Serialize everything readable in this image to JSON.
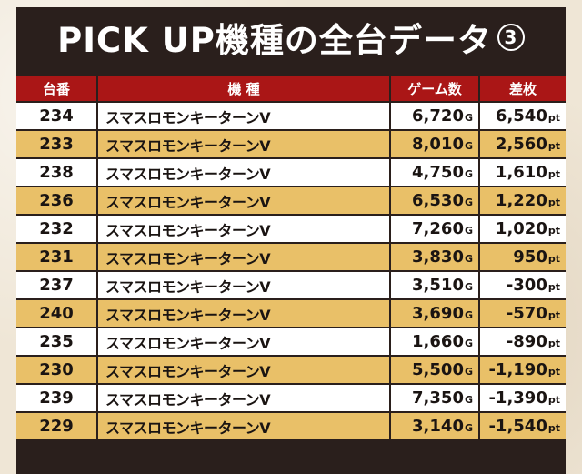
{
  "title": "PICK UP機種の全台データ",
  "title_number": "3",
  "columns": [
    "台番",
    "機 種",
    "ゲーム数",
    "差枚"
  ],
  "game_unit": "G",
  "diff_unit": "pt",
  "rows": [
    {
      "no": "234",
      "name": "スマスロモンキーターンV",
      "games": "6,720",
      "diff": "6,540"
    },
    {
      "no": "233",
      "name": "スマスロモンキーターンV",
      "games": "8,010",
      "diff": "2,560"
    },
    {
      "no": "238",
      "name": "スマスロモンキーターンV",
      "games": "4,750",
      "diff": "1,610"
    },
    {
      "no": "236",
      "name": "スマスロモンキーターンV",
      "games": "6,530",
      "diff": "1,220"
    },
    {
      "no": "232",
      "name": "スマスロモンキーターンV",
      "games": "7,260",
      "diff": "1,020"
    },
    {
      "no": "231",
      "name": "スマスロモンキーターンV",
      "games": "3,830",
      "diff": "950"
    },
    {
      "no": "237",
      "name": "スマスロモンキーターンV",
      "games": "3,510",
      "diff": "-300"
    },
    {
      "no": "240",
      "name": "スマスロモンキーターンV",
      "games": "3,690",
      "diff": "-570"
    },
    {
      "no": "235",
      "name": "スマスロモンキーターンV",
      "games": "1,660",
      "diff": "-890"
    },
    {
      "no": "230",
      "name": "スマスロモンキーターンV",
      "games": "5,500",
      "diff": "-1,190"
    },
    {
      "no": "239",
      "name": "スマスロモンキーターンV",
      "games": "7,350",
      "diff": "-1,390"
    },
    {
      "no": "229",
      "name": "スマスロモンキーターンV",
      "games": "3,140",
      "diff": "-1,540"
    }
  ],
  "colors": {
    "panel": "#2a1f1c",
    "header": "#aa1616",
    "row_odd": "#ffffff",
    "row_even": "#e9c068"
  }
}
